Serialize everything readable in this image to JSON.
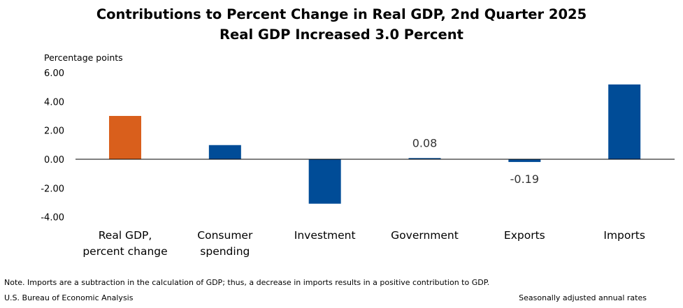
{
  "chart_data": {
    "type": "bar",
    "title": "Contributions to Percent Change in Real GDP, 2nd Quarter 2025",
    "subtitle": "Real GDP Increased 3.0 Percent",
    "ylabel": "Percentage points",
    "ylim": [
      -4,
      6
    ],
    "yticks": [
      "6.00",
      "4.00",
      "2.00",
      "0.00",
      "-2.00",
      "-4.00"
    ],
    "categories": [
      [
        "Real GDP,",
        "percent change"
      ],
      [
        "Consumer",
        "spending"
      ],
      [
        "Investment"
      ],
      [
        "Government"
      ],
      [
        "Exports"
      ],
      [
        "Imports"
      ]
    ],
    "values": [
      3.0,
      0.98,
      -3.08,
      0.08,
      -0.19,
      5.18
    ],
    "data_labels": [
      "",
      "",
      "",
      "0.08",
      "-0.19",
      ""
    ],
    "colors": [
      "#d95f1c",
      "#004c97",
      "#004c97",
      "#004c97",
      "#004c97",
      "#004c97"
    ],
    "grid": false,
    "legend": "none"
  },
  "footer": {
    "note": "Note. Imports are a subtraction in the calculation of GDP; thus, a decrease in imports results in a positive contribution to GDP.",
    "source": "U.S. Bureau of Economic Analysis",
    "rates": "Seasonally adjusted annual rates"
  }
}
